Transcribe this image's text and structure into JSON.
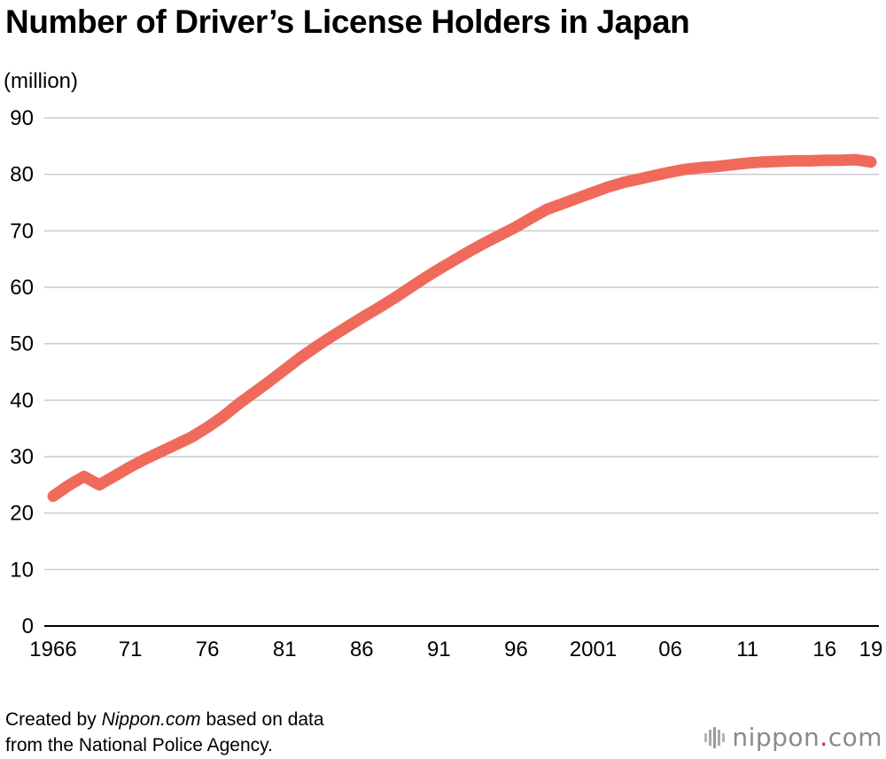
{
  "header": {
    "title": "Number of Driver’s License Holders in Japan",
    "unit_label": "(million)"
  },
  "footer": {
    "credit_prefix": "Created by ",
    "credit_site": "Nippon.com",
    "credit_suffix": " based on data",
    "credit_line2": "from the National Police Agency."
  },
  "logo": {
    "text_main": "nippon",
    "text_dot": ".",
    "text_tail": "com"
  },
  "colors": {
    "line": "#f06a5c",
    "grid": "#cccccc",
    "axis": "#000000"
  },
  "chart_data": {
    "type": "line",
    "title": "Number of Driver’s License Holders in Japan",
    "ylabel": "(million)",
    "xlabel": "",
    "ylim": [
      0,
      90
    ],
    "xlim": [
      1966,
      2019
    ],
    "yticks": [
      0,
      10,
      20,
      30,
      40,
      50,
      60,
      70,
      80,
      90
    ],
    "xticks": [
      {
        "value": 1966,
        "label": "1966"
      },
      {
        "value": 1971,
        "label": "71"
      },
      {
        "value": 1976,
        "label": "76"
      },
      {
        "value": 1981,
        "label": "81"
      },
      {
        "value": 1986,
        "label": "86"
      },
      {
        "value": 1991,
        "label": "91"
      },
      {
        "value": 1996,
        "label": "96"
      },
      {
        "value": 2001,
        "label": "2001"
      },
      {
        "value": 2006,
        "label": "06"
      },
      {
        "value": 2011,
        "label": "11"
      },
      {
        "value": 2016,
        "label": "16"
      },
      {
        "value": 2019,
        "label": "19"
      }
    ],
    "grid": true,
    "series": [
      {
        "name": "Driver's license holders",
        "x": [
          1966,
          1967,
          1968,
          1969,
          1970,
          1971,
          1972,
          1973,
          1974,
          1975,
          1976,
          1977,
          1978,
          1979,
          1980,
          1981,
          1982,
          1983,
          1984,
          1985,
          1986,
          1987,
          1988,
          1989,
          1990,
          1991,
          1992,
          1993,
          1994,
          1995,
          1996,
          1997,
          1998,
          1999,
          2000,
          2001,
          2002,
          2003,
          2004,
          2005,
          2006,
          2007,
          2008,
          2009,
          2010,
          2011,
          2012,
          2013,
          2014,
          2015,
          2016,
          2017,
          2018,
          2019
        ],
        "values": [
          23.0,
          24.9,
          26.5,
          25.0,
          26.6,
          28.2,
          29.6,
          30.9,
          32.2,
          33.5,
          35.2,
          37.1,
          39.3,
          41.3,
          43.3,
          45.4,
          47.5,
          49.4,
          51.2,
          52.9,
          54.6,
          56.2,
          57.9,
          59.7,
          61.5,
          63.2,
          64.8,
          66.4,
          67.9,
          69.3,
          70.7,
          72.3,
          73.8,
          74.8,
          75.8,
          76.8,
          77.8,
          78.6,
          79.2,
          79.8,
          80.4,
          80.9,
          81.2,
          81.4,
          81.7,
          82.0,
          82.2,
          82.3,
          82.4,
          82.4,
          82.5,
          82.5,
          82.6,
          82.2
        ]
      }
    ]
  }
}
